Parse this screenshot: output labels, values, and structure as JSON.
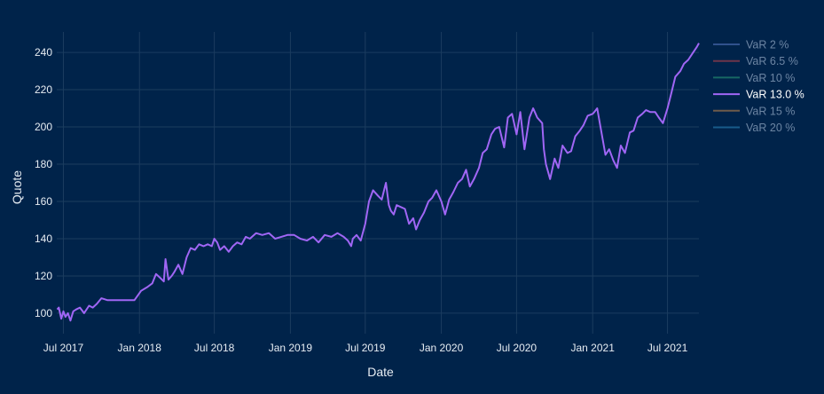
{
  "chart_data": {
    "type": "line",
    "xlabel": "Date",
    "ylabel": "Quote",
    "x_ticks": [
      "Jul 2017",
      "Jan 2018",
      "Jul 2018",
      "Jan 2019",
      "Jul 2019",
      "Jan 2020",
      "Jul 2020",
      "Jan 2021",
      "Jul 2021"
    ],
    "x_range": [
      "2017-06-15",
      "2021-09-15"
    ],
    "y_ticks": [
      100,
      120,
      140,
      160,
      180,
      200,
      220,
      240
    ],
    "ylim": [
      89,
      251
    ],
    "grid": true,
    "legend_position": "top-right",
    "series": [
      {
        "name": "VaR 2 %",
        "color": "#3d5e9e",
        "visible": false,
        "values": []
      },
      {
        "name": "VaR 6.5 %",
        "color": "#8a3a4a",
        "visible": false,
        "values": []
      },
      {
        "name": "VaR 10 %",
        "color": "#1e7a6a",
        "visible": false,
        "values": []
      },
      {
        "name": "VaR 13.0 %",
        "color": "#a066f5",
        "visible": true,
        "x": [
          "2017-06-16",
          "2017-06-20",
          "2017-06-26",
          "2017-07-01",
          "2017-07-06",
          "2017-07-12",
          "2017-07-18",
          "2017-07-25",
          "2017-08-01",
          "2017-08-10",
          "2017-08-20",
          "2017-09-01",
          "2017-09-10",
          "2017-09-20",
          "2017-10-01",
          "2017-10-15",
          "2017-10-28",
          "2017-11-08",
          "2017-11-10",
          "2017-12-01",
          "2017-12-20",
          "2018-01-05",
          "2018-01-20",
          "2018-02-01",
          "2018-02-10",
          "2018-02-20",
          "2018-03-01",
          "2018-03-05",
          "2018-03-12",
          "2018-03-20",
          "2018-03-26",
          "2018-04-05",
          "2018-04-15",
          "2018-04-25",
          "2018-05-05",
          "2018-05-15",
          "2018-05-25",
          "2018-06-05",
          "2018-06-15",
          "2018-06-25",
          "2018-07-01",
          "2018-07-08",
          "2018-07-15",
          "2018-07-25",
          "2018-08-05",
          "2018-08-15",
          "2018-08-25",
          "2018-09-05",
          "2018-09-15",
          "2018-09-25",
          "2018-10-10",
          "2018-10-25",
          "2018-11-10",
          "2018-11-25",
          "2018-12-10",
          "2018-12-25",
          "2019-01-10",
          "2019-01-25",
          "2019-02-10",
          "2019-02-25",
          "2019-03-10",
          "2019-03-25",
          "2019-04-10",
          "2019-04-25",
          "2019-05-10",
          "2019-05-20",
          "2019-05-28",
          "2019-06-01",
          "2019-06-10",
          "2019-06-20",
          "2019-07-01",
          "2019-07-10",
          "2019-07-20",
          "2019-08-01",
          "2019-08-10",
          "2019-08-20",
          "2019-08-27",
          "2019-09-01",
          "2019-09-08",
          "2019-09-15",
          "2019-09-25",
          "2019-10-05",
          "2019-10-15",
          "2019-10-25",
          "2019-11-01",
          "2019-11-10",
          "2019-11-20",
          "2019-12-01",
          "2019-12-10",
          "2019-12-20",
          "2020-01-01",
          "2020-01-10",
          "2020-01-20",
          "2020-01-30",
          "2020-02-10",
          "2020-02-20",
          "2020-03-01",
          "2020-03-10",
          "2020-03-20",
          "2020-04-01",
          "2020-04-10",
          "2020-04-20",
          "2020-05-01",
          "2020-05-10",
          "2020-05-20",
          "2020-06-01",
          "2020-06-10",
          "2020-06-20",
          "2020-07-01",
          "2020-07-10",
          "2020-07-20",
          "2020-08-01",
          "2020-08-10",
          "2020-08-20",
          "2020-09-01",
          "2020-09-05",
          "2020-09-10",
          "2020-09-20",
          "2020-10-01",
          "2020-10-10",
          "2020-10-20",
          "2020-11-01",
          "2020-11-10",
          "2020-11-20",
          "2020-12-01",
          "2020-12-10",
          "2020-12-20",
          "2021-01-01",
          "2021-01-05",
          "2021-01-12",
          "2021-01-20",
          "2021-02-01",
          "2021-02-10",
          "2021-02-20",
          "2021-03-01",
          "2021-03-10",
          "2021-03-20",
          "2021-04-01",
          "2021-04-10",
          "2021-04-20",
          "2021-05-01",
          "2021-05-10",
          "2021-05-20",
          "2021-06-01",
          "2021-06-10",
          "2021-06-20",
          "2021-07-01",
          "2021-07-10",
          "2021-07-20",
          "2021-08-01",
          "2021-08-10",
          "2021-08-20",
          "2021-09-01",
          "2021-09-10",
          "2021-09-15"
        ],
        "values": [
          102,
          103,
          97,
          101,
          98,
          100,
          96,
          101,
          102,
          103,
          100,
          104,
          103,
          105,
          108,
          107,
          107,
          107,
          107,
          107,
          107,
          112,
          114,
          116,
          121,
          119,
          117,
          129,
          118,
          120,
          122,
          126,
          121,
          130,
          135,
          134,
          137,
          136,
          137,
          136,
          140,
          138,
          134,
          136,
          133,
          136,
          138,
          137,
          141,
          140,
          143,
          142,
          143,
          140,
          141,
          142,
          142,
          140,
          139,
          141,
          138,
          142,
          141,
          143,
          141,
          139,
          136,
          140,
          142,
          139,
          148,
          160,
          166,
          163,
          161,
          170,
          158,
          155,
          153,
          158,
          157,
          156,
          148,
          151,
          145,
          150,
          154,
          160,
          162,
          166,
          160,
          153,
          161,
          165,
          170,
          172,
          177,
          168,
          172,
          178,
          186,
          188,
          196,
          199,
          200,
          189,
          205,
          207,
          196,
          208,
          188,
          205,
          210,
          205,
          202,
          188,
          180,
          172,
          183,
          178,
          190,
          186,
          187,
          195,
          198,
          201,
          206,
          207,
          208,
          210,
          200,
          185,
          188,
          182,
          178,
          190,
          186,
          197,
          198,
          205,
          207,
          209,
          208,
          208,
          205,
          202,
          210,
          218,
          227,
          230,
          234,
          236,
          240,
          243,
          245
        ]
      },
      {
        "name": "VaR 15 %",
        "color": "#8a6a4a",
        "visible": false,
        "values": []
      },
      {
        "name": "VaR 20 %",
        "color": "#1e6a9a",
        "visible": false,
        "values": []
      }
    ]
  }
}
